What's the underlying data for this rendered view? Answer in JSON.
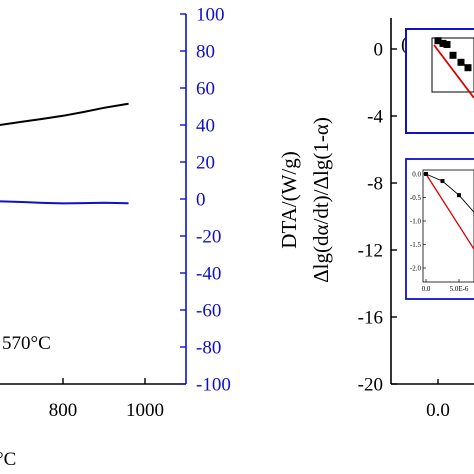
{
  "chart_data": [
    {
      "panel": "left",
      "type": "line",
      "x_tick_labels": [
        "800",
        "1000"
      ],
      "xlabel_fragment": "°C",
      "annotation": "570°C",
      "y_right_label": "DTA/(W/g)",
      "y_right_ticks": [
        "100",
        "80",
        "60",
        "40",
        "20",
        "0",
        "-20",
        "-40",
        "-60",
        "-80",
        "-100"
      ],
      "ylim_right": [
        -100,
        100
      ],
      "xlim": [
        550,
        1050
      ],
      "colors": {
        "right_axis": "#1010c8",
        "black_curve": "#000000",
        "blue_curve": "#1010c8"
      },
      "series": [
        {
          "color": "#000000",
          "axis": "right",
          "x": [
            550,
            600,
            650,
            700,
            750,
            800,
            850,
            900,
            960
          ],
          "y": [
            38.5,
            39.2,
            40.1,
            41.8,
            43.3,
            45,
            47,
            49.3,
            51.5
          ]
        },
        {
          "color": "#1010c8",
          "axis": "right",
          "x": [
            550,
            600,
            650,
            700,
            750,
            800,
            850,
            900,
            960
          ],
          "y": [
            -0.8,
            -1.0,
            -1.3,
            -1.6,
            -2.1,
            -2.4,
            -2.2,
            -2.0,
            -2.3
          ]
        }
      ]
    },
    {
      "panel": "right",
      "type": "scatter",
      "panel_label": "(b)",
      "ylabel": "Δlg(dα/dt)/Δlg(1-α)",
      "y_ticks": [
        "0",
        "-4",
        "-8",
        "-12",
        "-16",
        "-20"
      ],
      "ylim": [
        -20,
        1.5
      ],
      "x_tick_labels": [
        "0.0"
      ],
      "insets": [
        {
          "name": "upper-inset",
          "points_y_frac": [
            0.05,
            0.1,
            0.12,
            0.32,
            0.45,
            0.55
          ],
          "marker": "square",
          "fit_color": "#dd0000"
        },
        {
          "name": "lower-inset",
          "y_ticks": [
            "0.0",
            "-0.5",
            "-1.0",
            "-1.5",
            "-2.0"
          ],
          "x_ticks": [
            "0.0",
            "5.0E-6"
          ],
          "ylim": [
            -2.1,
            0.1
          ],
          "black_series": {
            "x": [
              0,
              2.5e-06,
              5e-06,
              7.5e-06
            ],
            "y": [
              0,
              -0.15,
              -0.45,
              -0.85
            ]
          },
          "red_fit": {
            "x": [
              0,
              9e-06
            ],
            "y": [
              0,
              -1.6
            ]
          },
          "fit_color": "#dd0000"
        }
      ]
    }
  ]
}
